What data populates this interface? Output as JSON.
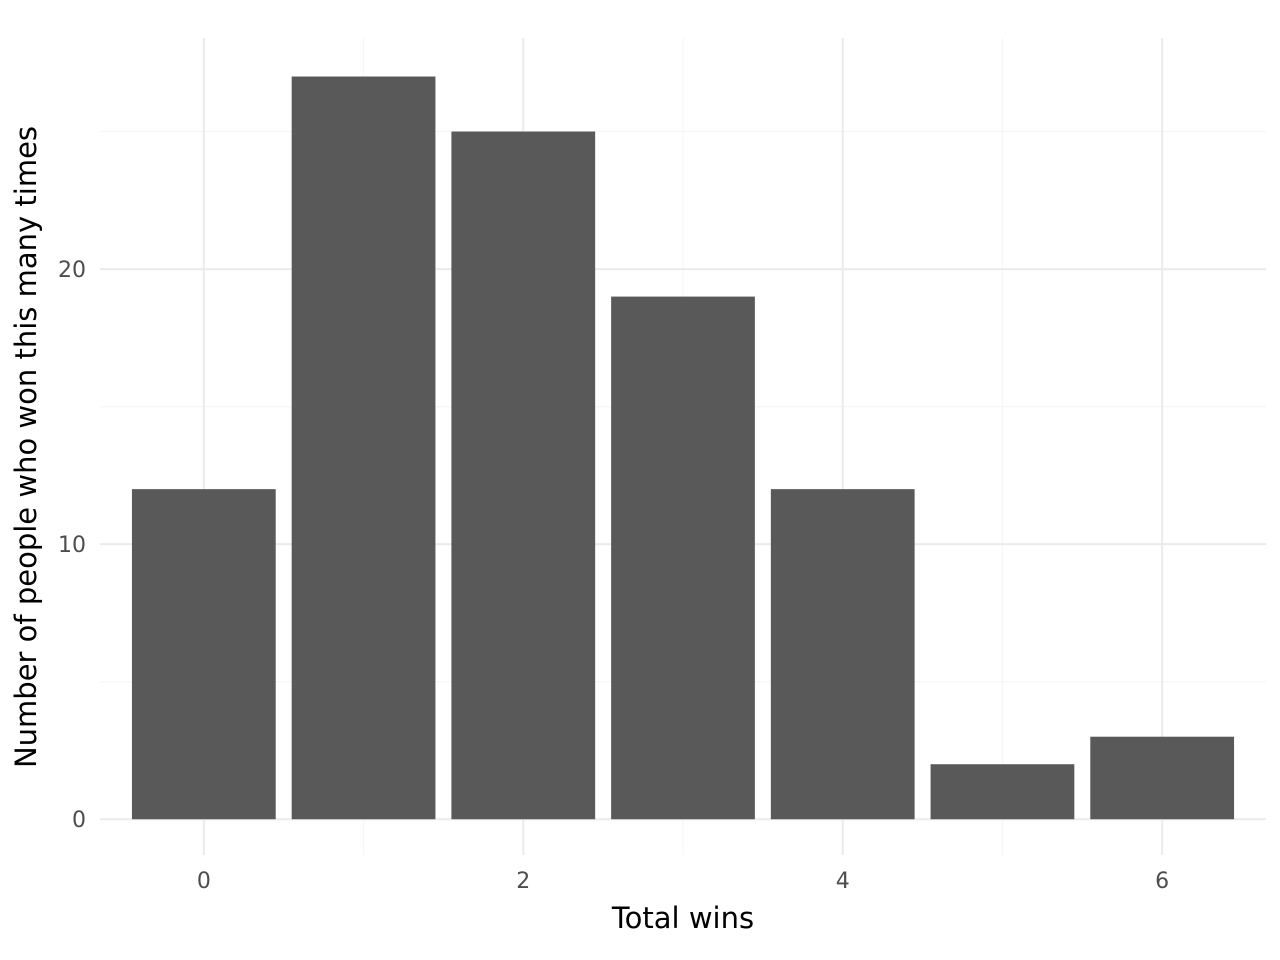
{
  "chart_data": {
    "type": "bar",
    "title": "",
    "xlabel": "Total wins",
    "ylabel": "Number of people who won this many times",
    "x": [
      0,
      1,
      2,
      3,
      4,
      5,
      6
    ],
    "values": [
      12,
      27,
      25,
      19,
      12,
      2,
      3
    ],
    "xlim": [
      -0.65,
      6.65
    ],
    "ylim": [
      -1.3,
      28.4
    ],
    "x_ticks": [
      0,
      2,
      4,
      6
    ],
    "x_tick_labels": [
      "0",
      "2",
      "4",
      "6"
    ],
    "x_minor_ticks": [
      1,
      3,
      5
    ],
    "y_ticks": [
      0,
      10,
      20
    ],
    "y_tick_labels": [
      "0",
      "10",
      "20"
    ],
    "y_minor_ticks": [
      5,
      15,
      25
    ],
    "bar_width": 0.9,
    "grid": true,
    "legend": "none",
    "colors": {
      "bar": "#595959",
      "grid_major": "#ebebeb",
      "grid_minor": "#f6f6f6",
      "tick_text": "#4d4d4d",
      "axis_title": "#000000",
      "background": "#ffffff"
    }
  }
}
